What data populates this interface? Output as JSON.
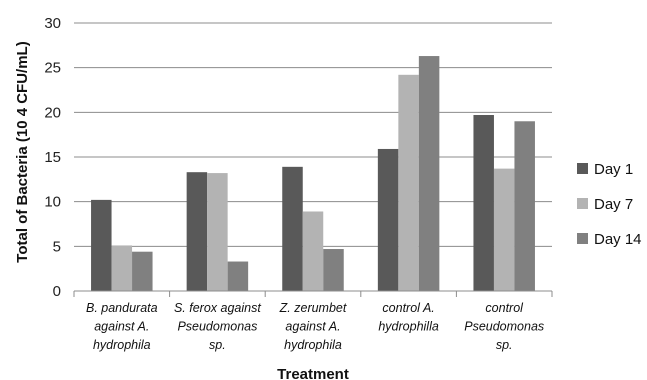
{
  "chart_data": {
    "type": "bar",
    "categories": [
      [
        "B. pandurata",
        "against A.",
        "hydrophila"
      ],
      [
        "S. ferox against",
        "Pseudomonas",
        "sp."
      ],
      [
        "Z. zerumbet",
        "against A.",
        "hydrophila"
      ],
      [
        "control A.",
        "hydrophilla"
      ],
      [
        "control",
        "Pseudomonas",
        "sp."
      ]
    ],
    "series": [
      {
        "name": "Day 1",
        "color": "#595959",
        "values": [
          10.2,
          13.3,
          13.9,
          15.9,
          19.7
        ]
      },
      {
        "name": "Day 7",
        "color": "#b3b3b3",
        "values": [
          5.1,
          13.2,
          8.9,
          24.2,
          13.7
        ]
      },
      {
        "name": "Day 14",
        "color": "#808080",
        "values": [
          4.4,
          3.3,
          4.7,
          26.3,
          19.0
        ]
      }
    ],
    "xlabel": "Treatment",
    "ylabel": "Total of Bacteria (10 4 CFU/mL)",
    "ylim": [
      0,
      30
    ],
    "yticks": [
      0,
      5,
      10,
      15,
      20,
      25,
      30
    ],
    "grid": true,
    "legend": "right"
  }
}
